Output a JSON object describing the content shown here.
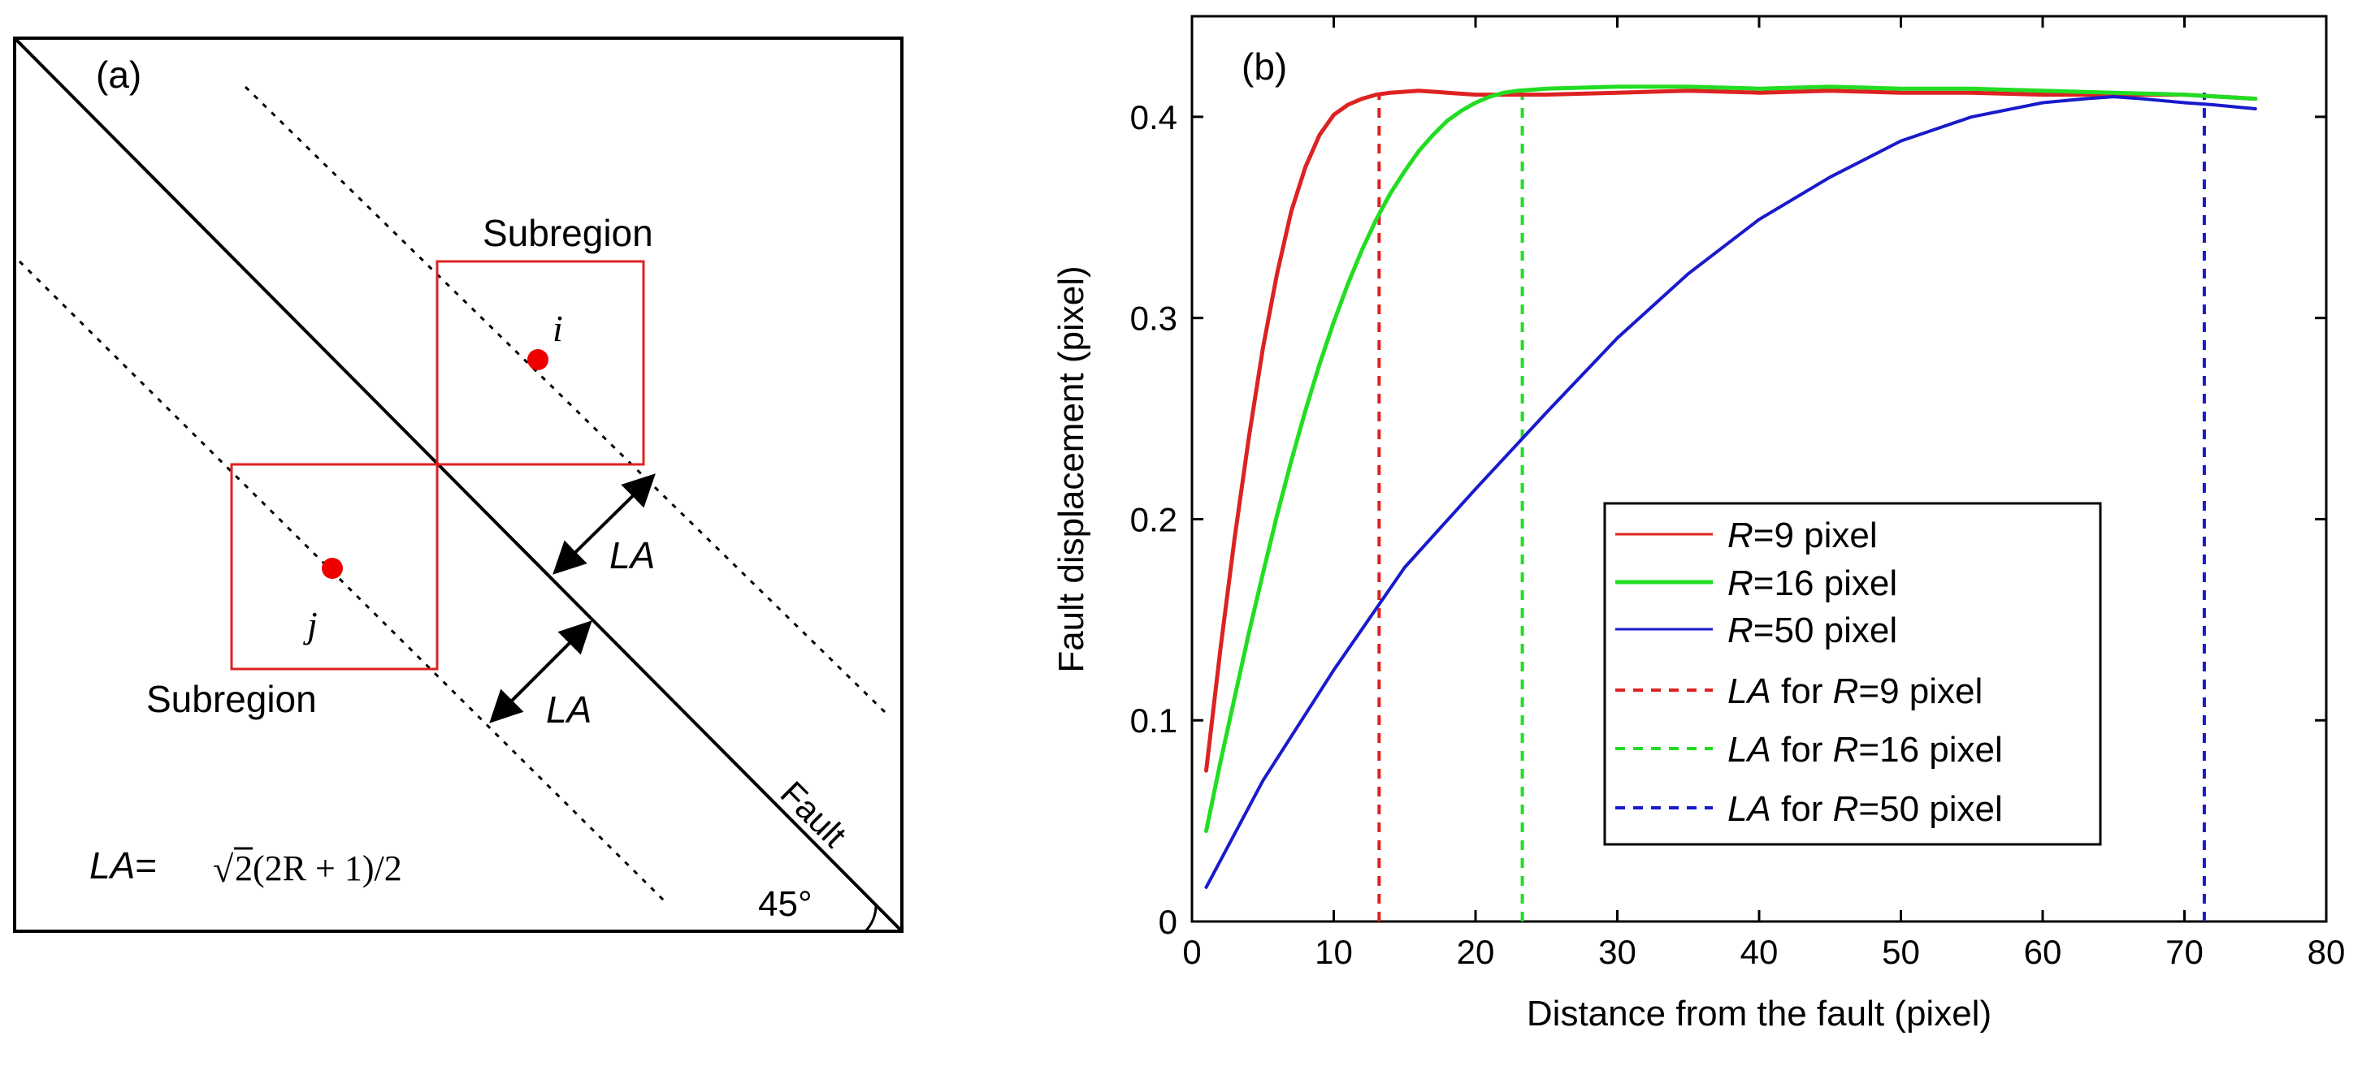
{
  "panel_a": {
    "label": "(a)",
    "subregion_top": "Subregion",
    "subregion_bottom": "Subregion",
    "point_i": "i",
    "point_j": "j",
    "la_upper": "LA",
    "la_lower": "LA",
    "fault": "Fault",
    "angle": "45°",
    "formula_lhs": "LA",
    "formula_eq": "=",
    "formula_sqrt": "√",
    "formula_radicand": "2",
    "formula_rest": "(2R + 1)/2",
    "colors": {
      "subregion": "#dd2222",
      "point": "#ee0000"
    }
  },
  "chart_data": {
    "type": "line",
    "label": "(b)",
    "xlabel": "Distance from the fault (pixel)",
    "ylabel": "Fault displacement (pixel)",
    "xlim": [
      0,
      80
    ],
    "ylim": [
      0,
      0.45
    ],
    "xticks": [
      0,
      10,
      20,
      30,
      40,
      50,
      60,
      70,
      80
    ],
    "xtick_labels": [
      "0",
      "10",
      "20",
      "30",
      "40",
      "50",
      "60",
      "70",
      "80"
    ],
    "yticks": [
      0,
      0.1,
      0.2,
      0.3,
      0.4
    ],
    "ytick_labels": [
      "0",
      "0.1",
      "0.2",
      "0.3",
      "0.4"
    ],
    "series": [
      {
        "name": "R=9 pixel",
        "legend_italic": "R",
        "legend_rest": "=9 pixel",
        "color": "#dd2222",
        "x": [
          1,
          2,
          3,
          4,
          5,
          6,
          7,
          8,
          9,
          10,
          11,
          12,
          13,
          14,
          16,
          18,
          20,
          25,
          30,
          35,
          40,
          45,
          50,
          55,
          60,
          65,
          70,
          75
        ],
        "y": [
          0.075,
          0.135,
          0.19,
          0.24,
          0.285,
          0.322,
          0.353,
          0.375,
          0.391,
          0.401,
          0.406,
          0.409,
          0.411,
          0.412,
          0.413,
          0.412,
          0.411,
          0.411,
          0.412,
          0.413,
          0.412,
          0.413,
          0.412,
          0.412,
          0.411,
          0.411,
          0.411,
          0.409
        ]
      },
      {
        "name": "R=16 pixel",
        "legend_italic": "R",
        "legend_rest": "=16 pixel",
        "color": "#22dd22",
        "x": [
          1,
          2,
          3,
          4,
          5,
          6,
          7,
          8,
          9,
          10,
          11,
          12,
          13,
          14,
          15,
          16,
          17,
          18,
          19,
          20,
          21,
          22,
          23,
          25,
          30,
          35,
          40,
          45,
          50,
          55,
          60,
          65,
          70,
          75
        ],
        "y": [
          0.045,
          0.079,
          0.111,
          0.143,
          0.173,
          0.202,
          0.229,
          0.254,
          0.277,
          0.298,
          0.317,
          0.334,
          0.349,
          0.362,
          0.373,
          0.383,
          0.391,
          0.398,
          0.403,
          0.407,
          0.41,
          0.412,
          0.413,
          0.414,
          0.415,
          0.415,
          0.414,
          0.415,
          0.414,
          0.414,
          0.413,
          0.412,
          0.411,
          0.409
        ]
      },
      {
        "name": "R=50 pixel",
        "legend_italic": "R",
        "legend_rest": "=50 pixel",
        "color": "#1a1acc",
        "x": [
          1,
          5,
          10,
          15,
          20,
          25,
          30,
          35,
          40,
          45,
          50,
          55,
          60,
          63,
          65,
          67,
          70,
          72,
          75
        ],
        "y": [
          0.017,
          0.07,
          0.125,
          0.176,
          0.215,
          0.253,
          0.29,
          0.322,
          0.349,
          0.37,
          0.388,
          0.4,
          0.407,
          0.409,
          0.41,
          0.409,
          0.407,
          0.406,
          0.404
        ]
      }
    ],
    "la_lines": [
      {
        "name": "LA for R=9 pixel",
        "legend_la": "LA",
        "legend_mid": " for ",
        "legend_r": "R",
        "legend_rest": "=9 pixel",
        "x": 13.2,
        "color": "#dd2222"
      },
      {
        "name": "LA for R=16 pixel",
        "legend_la": "LA",
        "legend_mid": " for ",
        "legend_r": "R",
        "legend_rest": "=16 pixel",
        "x": 23.3,
        "color": "#22dd22"
      },
      {
        "name": "LA for R=50 pixel",
        "legend_la": "LA",
        "legend_mid": " for ",
        "legend_r": "R",
        "legend_rest": "=50 pixel",
        "x": 71.4,
        "color": "#1a1acc"
      }
    ],
    "legend_position": "lower-right"
  }
}
